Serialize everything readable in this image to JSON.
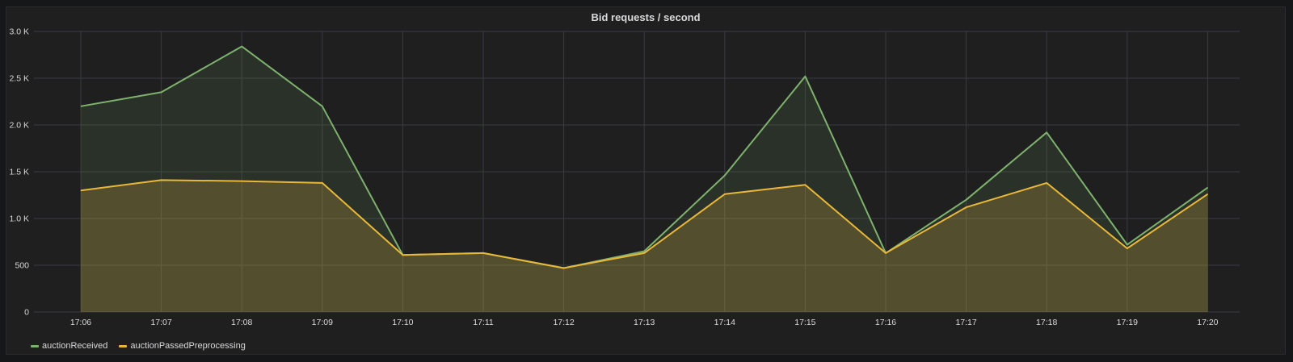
{
  "panel": {
    "title": "Bid requests / second"
  },
  "colors": {
    "background": "#1f1f20",
    "grid": "#3a3b3f",
    "text": "#d8d9da",
    "auctionReceived": "#7eb26d",
    "auctionPassedPreprocessing": "#eab839"
  },
  "chart_data": {
    "type": "area",
    "title": "Bid requests / second",
    "xlabel": "",
    "ylabel": "",
    "x": [
      "17:06",
      "17:07",
      "17:08",
      "17:09",
      "17:10",
      "17:11",
      "17:12",
      "17:13",
      "17:14",
      "17:15",
      "17:16",
      "17:17",
      "17:18",
      "17:19",
      "17:20"
    ],
    "ylim": [
      0,
      3000
    ],
    "yticks": [
      0,
      500,
      1000,
      1500,
      2000,
      2500,
      3000
    ],
    "ytick_labels": [
      "0",
      "500",
      "1.0 K",
      "1.5 K",
      "2.0 K",
      "2.5 K",
      "3.0 K"
    ],
    "grid": true,
    "legend_position": "bottom-left",
    "series": [
      {
        "name": "auctionReceived",
        "values": [
          2200,
          2350,
          2840,
          2200,
          610,
          630,
          470,
          650,
          1460,
          2520,
          630,
          1200,
          1920,
          720,
          1330
        ]
      },
      {
        "name": "auctionPassedPreprocessing",
        "values": [
          1300,
          1410,
          1400,
          1380,
          610,
          630,
          470,
          630,
          1260,
          1360,
          630,
          1120,
          1380,
          680,
          1260
        ]
      }
    ]
  }
}
